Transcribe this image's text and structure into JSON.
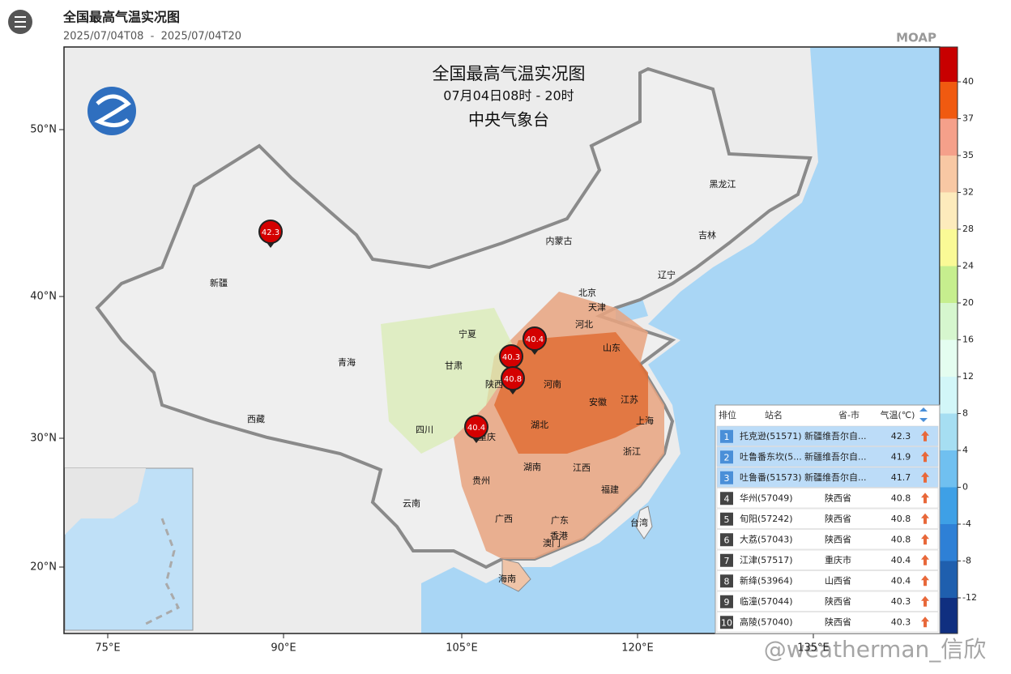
{
  "header": {
    "title": "全国最高气温实况图",
    "period": "2025/07/04T08  -  2025/07/04T20",
    "brand": "MOAP"
  },
  "map": {
    "title": "全国最高气温实况图",
    "subtitle": "07月04日08时 - 20时",
    "agency": "中央气象台",
    "lat_labels": [
      "50°N",
      "40°N",
      "30°N",
      "20°N"
    ],
    "lon_labels": [
      "75°E",
      "90°E",
      "105°E",
      "120°E",
      "135°E"
    ],
    "regions": [
      "新疆",
      "青海",
      "西藏",
      "甘肃",
      "内蒙古",
      "黑龙江",
      "吉林",
      "辽宁",
      "北京",
      "天津",
      "河北",
      "山东",
      "宁夏",
      "陕西",
      "河南",
      "四川",
      "重庆",
      "湖北",
      "安徽",
      "江苏",
      "上海",
      "湖南",
      "江西",
      "浙江",
      "贵州",
      "云南",
      "广西",
      "广东",
      "福建",
      "台湾",
      "香港",
      "澳门",
      "海南"
    ],
    "markers": [
      "42.3",
      "40.4",
      "40.3",
      "40.8",
      "40.4"
    ]
  },
  "legend": {
    "ticks": [
      40,
      37,
      35,
      32,
      28,
      24,
      20,
      16,
      12,
      8,
      4,
      0,
      -4,
      -8,
      -12
    ],
    "colors": [
      "#c80000",
      "#f05a10",
      "#f5a08a",
      "#f8c8a4",
      "#fdebbc",
      "#fafa96",
      "#c6ee8e",
      "#d6f6ce",
      "#e4fdf0",
      "#d2f6f8",
      "#a6def2",
      "#70c0f0",
      "#3ea0e6",
      "#2e80d6",
      "#1f5fae",
      "#102f80"
    ]
  },
  "table": {
    "header": [
      "排位",
      "站名",
      "省-市",
      "气温(℃)"
    ],
    "rows": [
      [
        1,
        "托克逊(51571)",
        "新疆维吾尔自...",
        42.3
      ],
      [
        2,
        "吐鲁番东坎(5...",
        "新疆维吾尔自...",
        41.9
      ],
      [
        3,
        "吐鲁番(51573)",
        "新疆维吾尔自...",
        41.7
      ],
      [
        4,
        "华州(57049)",
        "陕西省",
        40.8
      ],
      [
        5,
        "旬阳(57242)",
        "陕西省",
        40.8
      ],
      [
        6,
        "大荔(57043)",
        "陕西省",
        40.8
      ],
      [
        7,
        "江津(57517)",
        "重庆市",
        40.4
      ],
      [
        8,
        "新绛(53964)",
        "山西省",
        40.4
      ],
      [
        9,
        "临潼(57044)",
        "陕西省",
        40.3
      ],
      [
        10,
        "高陵(57040)",
        "陕西省",
        40.3
      ]
    ]
  },
  "watermark": "@weatherman_信欣"
}
